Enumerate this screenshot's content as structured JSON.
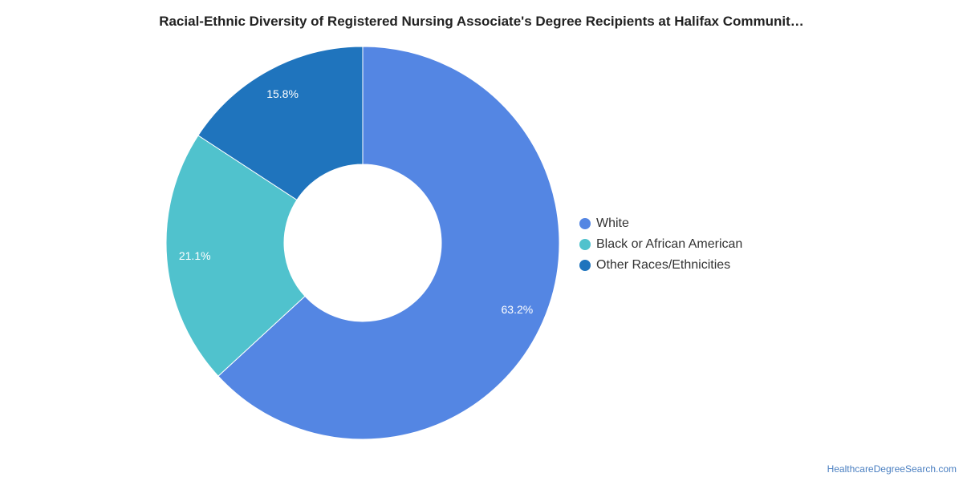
{
  "chart_data": {
    "type": "pie",
    "variant": "donut",
    "title": "Racial-Ethnic Diversity of Registered Nursing Associate's Degree Recipients at Halifax Communit…",
    "categories": [
      "White",
      "Black or African American",
      "Other Races/Ethnicities"
    ],
    "values": [
      63.2,
      21.1,
      15.8
    ],
    "value_labels": [
      "63.2%",
      "21.1%",
      "15.8%"
    ],
    "colors": [
      "#5486e3",
      "#50c2cd",
      "#1f74bd"
    ],
    "legend_position": "right",
    "label_color": "#ffffff"
  },
  "footer": {
    "source": "HealthcareDegreeSearch.com"
  }
}
